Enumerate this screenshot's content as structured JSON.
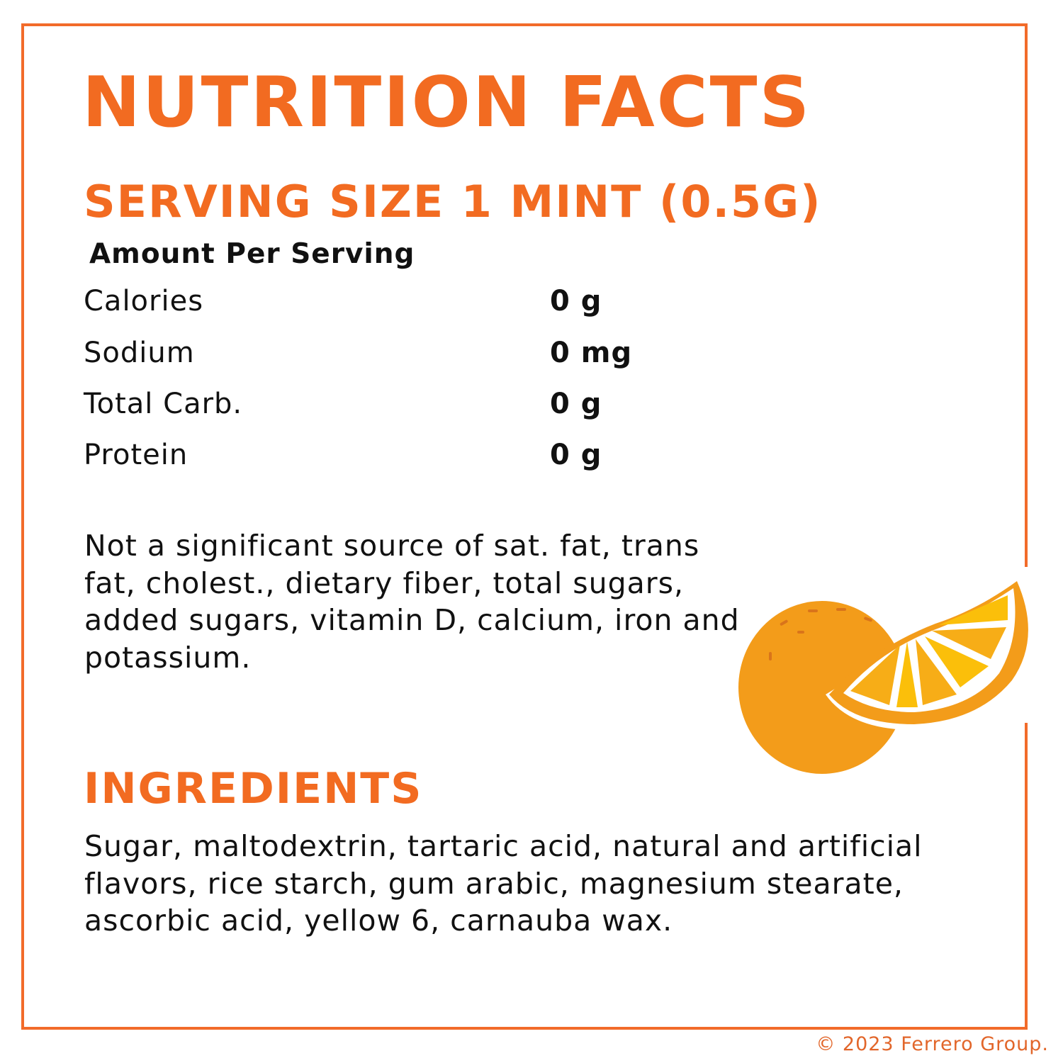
{
  "title": "NUTRITION FACTS",
  "serving_size": "SERVING SIZE 1 MINT (0.5G)",
  "amount_per_serving": "Amount Per Serving",
  "nutrients": [
    {
      "label": "Calories",
      "value": "0 g"
    },
    {
      "label": "Sodium",
      "value": "0 mg"
    },
    {
      "label": "Total Carb.",
      "value": "0 g"
    },
    {
      "label": "Protein",
      "value": "0 g"
    }
  ],
  "note": "Not a significant source of sat. fat, trans fat, cholest., dietary fiber, total sugars, added sugars, vitamin D, calcium, iron and potassium.",
  "ingredients_heading": "INGREDIENTS",
  "ingredients": "Sugar, maltodextrin, tartaric acid, natural and artificial flavors, rice starch, gum arabic, magnesium stearate, ascorbic acid, yellow 6, carnauba wax.",
  "copyright": "© 2023 Ferrero Group.",
  "colors": {
    "accent": "#f26b21",
    "orange_peel": "#f39c1a",
    "orange_segment": "#fbbf0a"
  },
  "illustration": "orange-fruit-icon"
}
